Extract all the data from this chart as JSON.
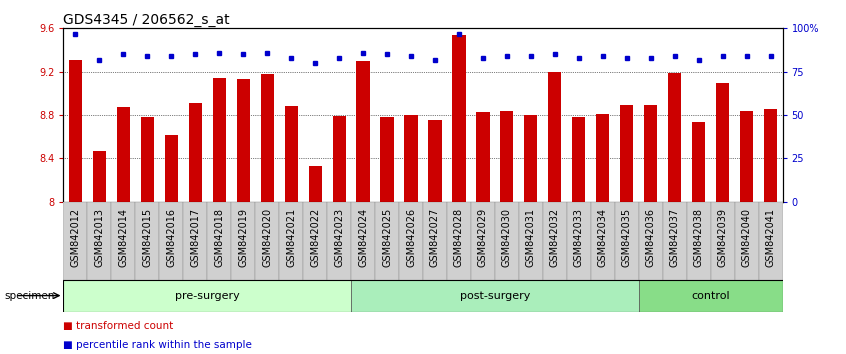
{
  "title": "GDS4345 / 206562_s_at",
  "categories": [
    "GSM842012",
    "GSM842013",
    "GSM842014",
    "GSM842015",
    "GSM842016",
    "GSM842017",
    "GSM842018",
    "GSM842019",
    "GSM842020",
    "GSM842021",
    "GSM842022",
    "GSM842023",
    "GSM842024",
    "GSM842025",
    "GSM842026",
    "GSM842027",
    "GSM842028",
    "GSM842029",
    "GSM842030",
    "GSM842031",
    "GSM842032",
    "GSM842033",
    "GSM842034",
    "GSM842035",
    "GSM842036",
    "GSM842037",
    "GSM842038",
    "GSM842039",
    "GSM842040",
    "GSM842041"
  ],
  "bar_values": [
    9.31,
    8.47,
    8.87,
    8.78,
    8.62,
    8.91,
    9.14,
    9.13,
    9.18,
    8.88,
    8.33,
    8.79,
    9.3,
    8.78,
    8.8,
    8.75,
    9.54,
    8.83,
    8.84,
    8.8,
    9.2,
    8.78,
    8.81,
    8.89,
    8.89,
    9.19,
    8.74,
    9.1,
    8.84,
    8.86
  ],
  "percentile_values": [
    97,
    82,
    85,
    84,
    84,
    85,
    86,
    85,
    86,
    83,
    80,
    83,
    86,
    85,
    84,
    82,
    97,
    83,
    84,
    84,
    85,
    83,
    84,
    83,
    83,
    84,
    82,
    84,
    84,
    84
  ],
  "bar_color": "#cc0000",
  "dot_color": "#0000cc",
  "ylim_left": [
    8.0,
    9.6
  ],
  "ylim_right": [
    0,
    100
  ],
  "yticks_left": [
    8.0,
    8.4,
    8.8,
    9.2,
    9.6
  ],
  "ytick_labels_left": [
    "8",
    "8.4",
    "8.8",
    "9.2",
    "9.6"
  ],
  "yticks_right": [
    0,
    25,
    50,
    75,
    100
  ],
  "ytick_labels_right": [
    "0",
    "25",
    "50",
    "75",
    "100%"
  ],
  "groups": [
    {
      "label": "pre-surgery",
      "start": 0,
      "end": 12,
      "color": "#ccffcc"
    },
    {
      "label": "post-surgery",
      "start": 12,
      "end": 24,
      "color": "#aaeebb"
    },
    {
      "label": "control",
      "start": 24,
      "end": 30,
      "color": "#88dd88"
    }
  ],
  "specimen_label": "specimen",
  "legend_items": [
    {
      "label": "transformed count",
      "color": "#cc0000"
    },
    {
      "label": "percentile rank within the sample",
      "color": "#0000cc"
    }
  ],
  "grid_lines": [
    8.4,
    8.8,
    9.2
  ],
  "background_color": "#ffffff",
  "title_fontsize": 10,
  "tick_fontsize": 7,
  "xtick_bg_color": "#d0d0d0"
}
